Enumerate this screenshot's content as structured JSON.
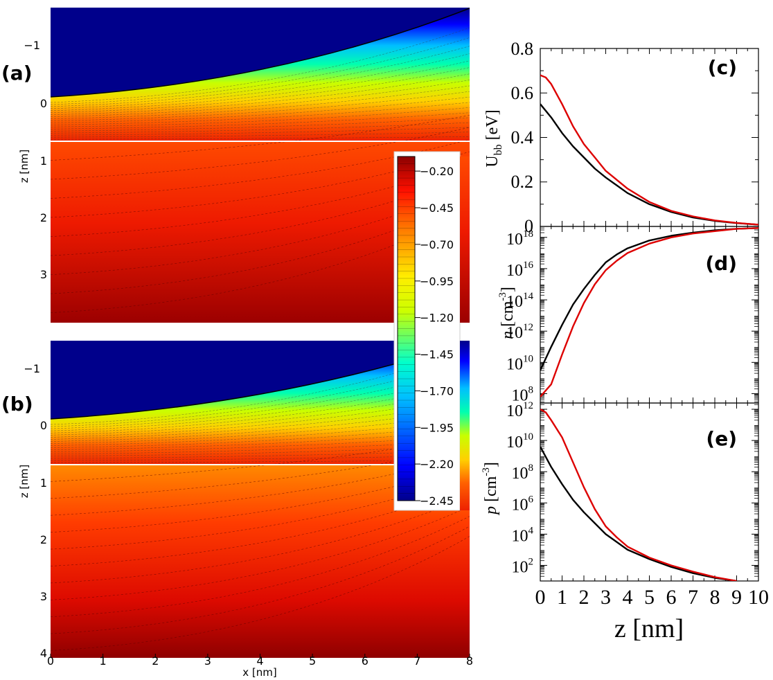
{
  "colorbar": {
    "ticks": [
      "-0.20",
      "-0.45",
      "-0.70",
      "-0.95",
      "-1.20",
      "-1.45",
      "-1.70",
      "-1.95",
      "-2.20",
      "-2.45"
    ],
    "colors": {
      "low": "#00008b",
      "blue": "#0000ff",
      "cyan": "#00ffff",
      "yellow": "#ffff00",
      "orange": "#ff8000",
      "red": "#ff0000",
      "high": "#8b0000"
    }
  },
  "chart_data": [
    {
      "type": "heatmap",
      "panel": "(a)",
      "xlabel": "",
      "ylabel": "z [nm]",
      "xlim": [
        0,
        8
      ],
      "ylim": [
        -1.7,
        3.9
      ],
      "yticks": [
        "−1",
        "0",
        "1",
        "2",
        "3"
      ],
      "interface_z": 0.7,
      "contact_edge_z_at_x": [
        [
          0,
          0.0
        ],
        [
          2,
          -0.2
        ],
        [
          4,
          -0.45
        ],
        [
          6,
          -0.9
        ],
        [
          8,
          -1.7
        ]
      ],
      "value_range": [
        -2.45,
        -0.1
      ]
    },
    {
      "type": "heatmap",
      "panel": "(b)",
      "xlabel": "x [nm]",
      "ylabel": "z [nm]",
      "xlim": [
        0,
        8
      ],
      "ylim": [
        -1.7,
        4.0
      ],
      "xticks": [
        "0",
        "1",
        "2",
        "3",
        "4",
        "5",
        "6",
        "7",
        "8"
      ],
      "yticks": [
        "−1",
        "0",
        "1",
        "2",
        "3",
        "4"
      ],
      "interface_z": 0.7,
      "contact_edge_z_at_x": [
        [
          0,
          0.0
        ],
        [
          2,
          -0.2
        ],
        [
          4,
          -0.45
        ],
        [
          6,
          -0.9
        ],
        [
          8,
          -1.7
        ]
      ],
      "value_range": [
        -2.45,
        -0.1
      ]
    },
    {
      "type": "line",
      "panel": "(c)",
      "xlabel": "",
      "ylabel": "U_bb [eV]",
      "ylabel_main": "U",
      "ylabel_sub": "bb",
      "ylabel_unit": " [eV]",
      "xlim": [
        0,
        10
      ],
      "ylim": [
        0,
        0.8
      ],
      "yticks": [
        "0",
        "0.2",
        "0.4",
        "0.6",
        "0.8"
      ],
      "series": [
        {
          "name": "black",
          "color": "#000000",
          "x": [
            0,
            0.5,
            1,
            1.5,
            2,
            2.5,
            3,
            4,
            5,
            6,
            7,
            8,
            9,
            10
          ],
          "y": [
            0.55,
            0.49,
            0.42,
            0.36,
            0.31,
            0.26,
            0.22,
            0.15,
            0.1,
            0.065,
            0.04,
            0.025,
            0.015,
            0.008
          ]
        },
        {
          "name": "red",
          "color": "#dd0000",
          "x": [
            0,
            0.25,
            0.5,
            1,
            1.5,
            2,
            2.5,
            3,
            4,
            5,
            6,
            7,
            8,
            9,
            10
          ],
          "y": [
            0.68,
            0.67,
            0.64,
            0.55,
            0.45,
            0.37,
            0.31,
            0.25,
            0.17,
            0.11,
            0.07,
            0.045,
            0.027,
            0.016,
            0.008
          ]
        }
      ]
    },
    {
      "type": "line",
      "panel": "(d)",
      "xlabel": "",
      "ylabel": "n [cm^-3]",
      "ylabel_main": "n",
      "ylabel_unit": " [cm",
      "ylabel_sup": "-3",
      "yscale": "log",
      "xlim": [
        0,
        10
      ],
      "ylim_log10": [
        7.4,
        18.7
      ],
      "yticks_base": "10",
      "yticks_exp": [
        "8",
        "10",
        "12",
        "14",
        "16",
        "18"
      ],
      "series": [
        {
          "name": "black",
          "color": "#000000",
          "x": [
            0,
            0.5,
            1,
            1.5,
            2,
            2.5,
            3,
            3.5,
            4,
            5,
            6,
            7,
            8,
            9,
            10
          ],
          "log10_y": [
            9.5,
            11.0,
            12.4,
            13.7,
            14.7,
            15.6,
            16.4,
            16.9,
            17.3,
            17.8,
            18.1,
            18.3,
            18.45,
            18.55,
            18.6
          ]
        },
        {
          "name": "red",
          "color": "#dd0000",
          "x": [
            0,
            0.5,
            1,
            1.5,
            2,
            2.5,
            3,
            3.5,
            4,
            5,
            6,
            7,
            8,
            9,
            10
          ],
          "log10_y": [
            7.8,
            8.6,
            10.5,
            12.3,
            13.8,
            15.0,
            15.9,
            16.5,
            17.0,
            17.6,
            18.0,
            18.25,
            18.4,
            18.55,
            18.6
          ]
        }
      ]
    },
    {
      "type": "line",
      "panel": "(e)",
      "xlabel": "z [nm]",
      "ylabel": "p [cm^-3]",
      "ylabel_main": "p",
      "ylabel_unit": " [cm",
      "ylabel_sup": "-3",
      "yscale": "log",
      "xlim": [
        0,
        10
      ],
      "xticks": [
        "0",
        "1",
        "2",
        "3",
        "4",
        "5",
        "6",
        "7",
        "8",
        "9",
        "10"
      ],
      "ylim_log10": [
        1.0,
        12.4
      ],
      "yticks_base": "10",
      "yticks_exp": [
        "2",
        "4",
        "6",
        "8",
        "10",
        "12"
      ],
      "series": [
        {
          "name": "black",
          "color": "#000000",
          "x": [
            0,
            0.5,
            1,
            1.5,
            2,
            2.5,
            3,
            3.5,
            4,
            5,
            6,
            7,
            8,
            9
          ],
          "log10_y": [
            9.6,
            8.3,
            7.2,
            6.2,
            5.4,
            4.7,
            4.0,
            3.5,
            3.0,
            2.4,
            1.9,
            1.5,
            1.2,
            1.0
          ]
        },
        {
          "name": "red",
          "color": "#dd0000",
          "x": [
            0,
            0.25,
            0.5,
            1,
            1.5,
            2,
            2.5,
            3,
            3.5,
            4,
            5,
            6,
            7,
            8,
            9
          ],
          "log10_y": [
            12.0,
            11.8,
            11.3,
            10.2,
            8.6,
            7.0,
            5.6,
            4.5,
            3.8,
            3.2,
            2.5,
            2.0,
            1.6,
            1.25,
            1.0
          ]
        }
      ]
    }
  ]
}
